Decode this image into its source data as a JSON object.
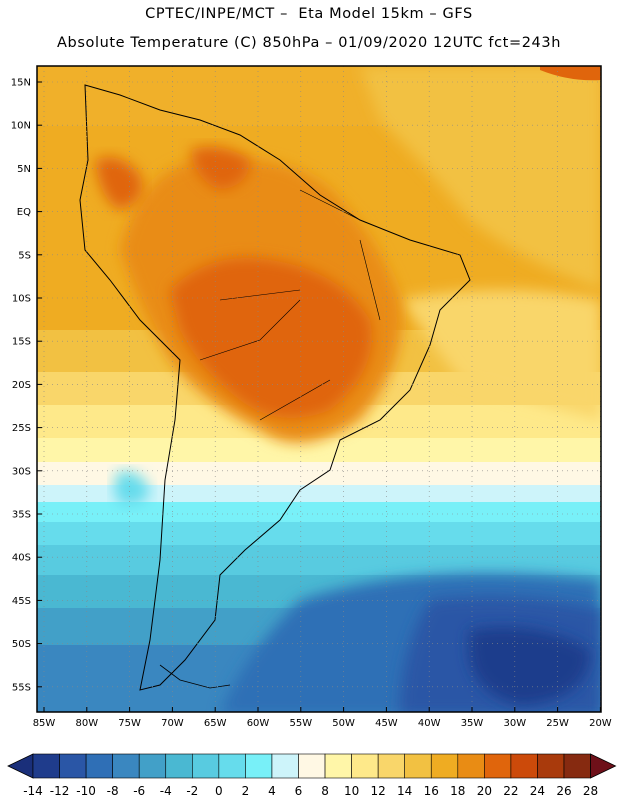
{
  "header": {
    "line1": "CPTEC/INPE/MCT –  Eta Model 15km – GFS",
    "line2": "Absolute Temperature (C) 850hPa – 01/09/2020 12UTC fct=243h"
  },
  "axes": {
    "lat_labels": [
      "15N",
      "10N",
      "5N",
      "EQ",
      "5S",
      "10S",
      "15S",
      "20S",
      "25S",
      "30S",
      "35S",
      "40S",
      "45S",
      "50S",
      "55S"
    ],
    "lon_labels": [
      "85W",
      "80W",
      "75W",
      "70W",
      "65W",
      "60W",
      "55W",
      "50W",
      "45W",
      "40W",
      "35W",
      "30W",
      "25W",
      "20W"
    ]
  },
  "colorbar": {
    "labels": [
      "-14",
      "-12",
      "-10",
      "-8",
      "-6",
      "-4",
      "-2",
      "0",
      "2",
      "4",
      "6",
      "8",
      "10",
      "12",
      "14",
      "16",
      "18",
      "20",
      "22",
      "24",
      "26",
      "28"
    ],
    "colors": [
      "#1f3c8c",
      "#2a56a6",
      "#2f6fb6",
      "#3a87c0",
      "#42a0c8",
      "#4ab8d2",
      "#58cbe0",
      "#66dcec",
      "#78f0f8",
      "#cdf4fa",
      "#fff8e4",
      "#fff6a8",
      "#fee98a",
      "#f9d66a",
      "#f2c142",
      "#efac22",
      "#e98c14",
      "#e0650c",
      "#cc4a0a",
      "#a93a0c",
      "#862a10"
    ],
    "under_color": "#1a2f7a",
    "over_color": "#6e1019"
  }
}
